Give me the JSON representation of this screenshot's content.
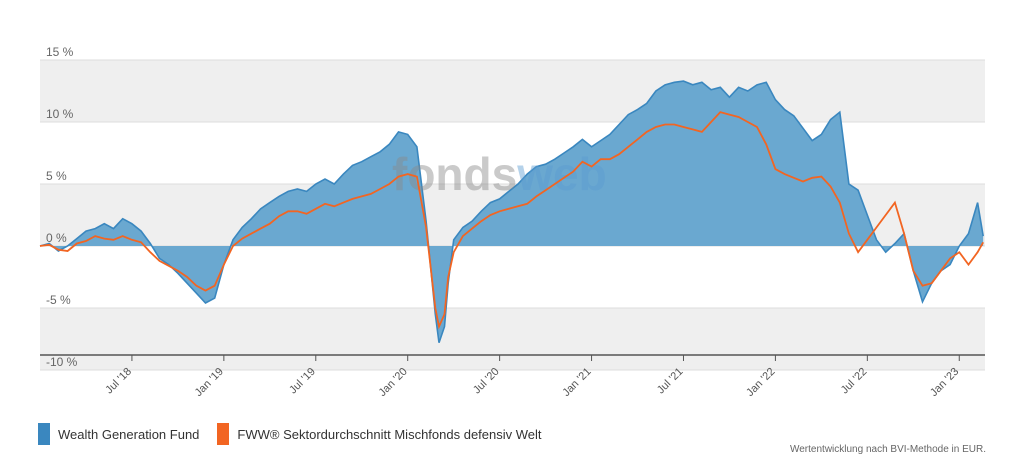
{
  "chart_data": {
    "type": "area",
    "watermark": "fondsweb",
    "y_ticks": [
      "15 %",
      "10 %",
      "5 %",
      "0 %",
      "-5 %",
      "-10 %"
    ],
    "y_tick_values": [
      15,
      10,
      5,
      0,
      -5,
      -10
    ],
    "ylim": [
      -10,
      15
    ],
    "xlim": [
      2018.0,
      2023.14
    ],
    "x_ticks": [
      "Jul '18",
      "Jan '19",
      "Jul '19",
      "Jan '20",
      "Jul '20",
      "Jan '21",
      "Jul '21",
      "Jan '22",
      "Jul '22",
      "Jan '23"
    ],
    "x_tick_values": [
      2018.5,
      2019.0,
      2019.5,
      2020.0,
      2020.5,
      2021.0,
      2021.5,
      2022.0,
      2022.5,
      2023.0
    ],
    "grid": true,
    "legend_position": "bottom-left",
    "series": [
      {
        "name": "Wealth Generation Fund",
        "color": "#3a87bf",
        "fill": "#6aa8d0",
        "x": [
          2018.0,
          2018.05,
          2018.1,
          2018.15,
          2018.2,
          2018.25,
          2018.3,
          2018.35,
          2018.4,
          2018.45,
          2018.5,
          2018.55,
          2018.6,
          2018.65,
          2018.7,
          2018.75,
          2018.8,
          2018.85,
          2018.9,
          2018.95,
          2019.0,
          2019.05,
          2019.1,
          2019.15,
          2019.2,
          2019.25,
          2019.3,
          2019.35,
          2019.4,
          2019.45,
          2019.5,
          2019.55,
          2019.6,
          2019.65,
          2019.7,
          2019.75,
          2019.8,
          2019.85,
          2019.9,
          2019.95,
          2020.0,
          2020.05,
          2020.1,
          2020.15,
          2020.17,
          2020.2,
          2020.22,
          2020.25,
          2020.3,
          2020.35,
          2020.4,
          2020.45,
          2020.5,
          2020.55,
          2020.6,
          2020.65,
          2020.7,
          2020.75,
          2020.8,
          2020.85,
          2020.9,
          2020.95,
          2021.0,
          2021.05,
          2021.1,
          2021.15,
          2021.2,
          2021.25,
          2021.3,
          2021.35,
          2021.4,
          2021.45,
          2021.5,
          2021.55,
          2021.6,
          2021.65,
          2021.7,
          2021.75,
          2021.8,
          2021.85,
          2021.9,
          2021.95,
          2022.0,
          2022.05,
          2022.1,
          2022.15,
          2022.2,
          2022.25,
          2022.3,
          2022.35,
          2022.4,
          2022.45,
          2022.5,
          2022.55,
          2022.6,
          2022.65,
          2022.7,
          2022.75,
          2022.8,
          2022.85,
          2022.9,
          2022.95,
          2023.0,
          2023.05,
          2023.1,
          2023.13
        ],
        "y": [
          0.0,
          0.2,
          -0.4,
          0.0,
          0.6,
          1.2,
          1.4,
          1.8,
          1.4,
          2.2,
          1.8,
          1.2,
          0.2,
          -1.0,
          -1.5,
          -2.2,
          -3.0,
          -3.8,
          -4.6,
          -4.2,
          -1.5,
          0.5,
          1.5,
          2.2,
          3.0,
          3.5,
          4.0,
          4.4,
          4.6,
          4.4,
          5.0,
          5.4,
          5.0,
          5.8,
          6.5,
          6.8,
          7.2,
          7.6,
          8.2,
          9.2,
          9.0,
          8.0,
          2.0,
          -5.5,
          -7.8,
          -6.5,
          -3.0,
          0.5,
          1.5,
          2.0,
          2.8,
          3.5,
          3.8,
          4.4,
          5.0,
          5.8,
          6.4,
          6.6,
          7.0,
          7.5,
          8.0,
          8.6,
          8.0,
          8.5,
          9.0,
          9.8,
          10.6,
          11.0,
          11.5,
          12.5,
          13.0,
          13.2,
          13.3,
          13.0,
          13.2,
          12.6,
          12.8,
          12.0,
          12.8,
          12.5,
          13.0,
          13.2,
          11.8,
          11.0,
          10.5,
          9.5,
          8.5,
          9.0,
          10.2,
          10.8,
          5.0,
          4.5,
          2.5,
          0.5,
          -0.5,
          0.2,
          1.0,
          -2.0,
          -4.5,
          -3.0,
          -2.0,
          -1.5,
          0.0,
          1.0,
          3.5,
          0.8
        ]
      },
      {
        "name": "FWW® Sektordurchschnitt Mischfonds defensiv Welt",
        "color": "#f26522",
        "x": [
          2018.0,
          2018.05,
          2018.1,
          2018.15,
          2018.2,
          2018.25,
          2018.3,
          2018.35,
          2018.4,
          2018.45,
          2018.5,
          2018.55,
          2018.6,
          2018.65,
          2018.7,
          2018.75,
          2018.8,
          2018.85,
          2018.9,
          2018.95,
          2019.0,
          2019.05,
          2019.1,
          2019.15,
          2019.2,
          2019.25,
          2019.3,
          2019.35,
          2019.4,
          2019.45,
          2019.5,
          2019.55,
          2019.6,
          2019.65,
          2019.7,
          2019.75,
          2019.8,
          2019.85,
          2019.9,
          2019.95,
          2020.0,
          2020.05,
          2020.1,
          2020.15,
          2020.17,
          2020.2,
          2020.22,
          2020.25,
          2020.3,
          2020.35,
          2020.4,
          2020.45,
          2020.5,
          2020.55,
          2020.6,
          2020.65,
          2020.7,
          2020.75,
          2020.8,
          2020.85,
          2020.9,
          2020.95,
          2021.0,
          2021.05,
          2021.1,
          2021.15,
          2021.2,
          2021.25,
          2021.3,
          2021.35,
          2021.4,
          2021.45,
          2021.5,
          2021.55,
          2021.6,
          2021.65,
          2021.7,
          2021.75,
          2021.8,
          2021.85,
          2021.9,
          2021.95,
          2022.0,
          2022.05,
          2022.1,
          2022.15,
          2022.2,
          2022.25,
          2022.3,
          2022.35,
          2022.4,
          2022.45,
          2022.5,
          2022.55,
          2022.6,
          2022.65,
          2022.7,
          2022.75,
          2022.8,
          2022.85,
          2022.9,
          2022.95,
          2023.0,
          2023.05,
          2023.1,
          2023.13
        ],
        "y": [
          0.0,
          0.1,
          -0.3,
          -0.4,
          0.2,
          0.4,
          0.8,
          0.6,
          0.5,
          0.8,
          0.5,
          0.3,
          -0.5,
          -1.2,
          -1.6,
          -2.0,
          -2.5,
          -3.2,
          -3.6,
          -3.2,
          -1.5,
          0.0,
          0.6,
          1.0,
          1.4,
          1.8,
          2.4,
          2.8,
          2.8,
          2.6,
          3.0,
          3.4,
          3.2,
          3.5,
          3.8,
          4.0,
          4.2,
          4.6,
          5.0,
          5.6,
          5.8,
          5.6,
          1.5,
          -5.0,
          -6.5,
          -5.5,
          -2.5,
          -0.5,
          0.8,
          1.4,
          2.0,
          2.5,
          2.8,
          3.0,
          3.2,
          3.4,
          4.0,
          4.5,
          5.0,
          5.5,
          6.0,
          6.8,
          6.4,
          7.0,
          7.0,
          7.4,
          8.0,
          8.6,
          9.2,
          9.6,
          9.8,
          9.8,
          9.6,
          9.4,
          9.2,
          10.0,
          10.8,
          10.6,
          10.4,
          10.0,
          9.6,
          8.2,
          6.2,
          5.8,
          5.5,
          5.2,
          5.5,
          5.6,
          4.8,
          3.5,
          1.0,
          -0.5,
          0.5,
          1.5,
          2.5,
          3.5,
          1.0,
          -2.0,
          -3.2,
          -3.0,
          -2.0,
          -1.0,
          -0.5,
          -1.5,
          -0.5,
          0.3
        ]
      }
    ],
    "footnote": "Wertentwicklung nach BVI-Methode in EUR."
  }
}
